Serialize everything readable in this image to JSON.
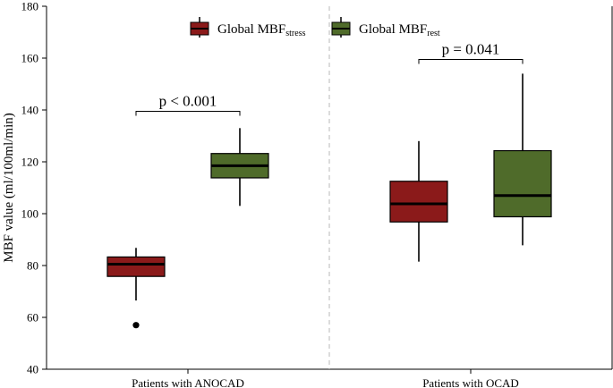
{
  "chart_data": {
    "type": "boxplot",
    "ylabel": "MBF value (ml/100ml/min)",
    "ylim": [
      40,
      180
    ],
    "yticks": [
      40,
      60,
      80,
      100,
      120,
      140,
      160,
      180
    ],
    "categories": [
      "Patients with ANOCAD",
      "Patients with OCAD"
    ],
    "legend": {
      "placement": "top-center",
      "entries": [
        {
          "base": "Global MBF",
          "sub": "stress",
          "color": "#8b1a1a"
        },
        {
          "base": "Global MBF",
          "sub": "rest",
          "color": "#4f6b2a"
        }
      ]
    },
    "series": [
      {
        "name": "Global MBF stress",
        "color": "#8b1a1a",
        "boxes": [
          {
            "min": 66.5,
            "q1": 75.8,
            "median": 80.5,
            "q3": 83.3,
            "max": 86.8,
            "outliers": [
              57
            ]
          },
          {
            "min": 81.5,
            "q1": 96.8,
            "median": 103.8,
            "q3": 112.5,
            "max": 128,
            "outliers": []
          }
        ]
      },
      {
        "name": "Global MBF rest",
        "color": "#4f6b2a",
        "boxes": [
          {
            "min": 103,
            "q1": 113.8,
            "median": 118.5,
            "q3": 123.2,
            "max": 133,
            "outliers": []
          },
          {
            "min": 87.8,
            "q1": 98.8,
            "median": 107,
            "q3": 124.3,
            "max": 154,
            "outliers": []
          }
        ]
      }
    ],
    "annotations": [
      {
        "text": "p < 0.001",
        "category": 0,
        "y": 139.5
      },
      {
        "text": "p = 0.041",
        "category": 1,
        "y": 159.5
      }
    ],
    "separator": {
      "style": "dashed",
      "position": "between-categories"
    },
    "grid": false
  }
}
